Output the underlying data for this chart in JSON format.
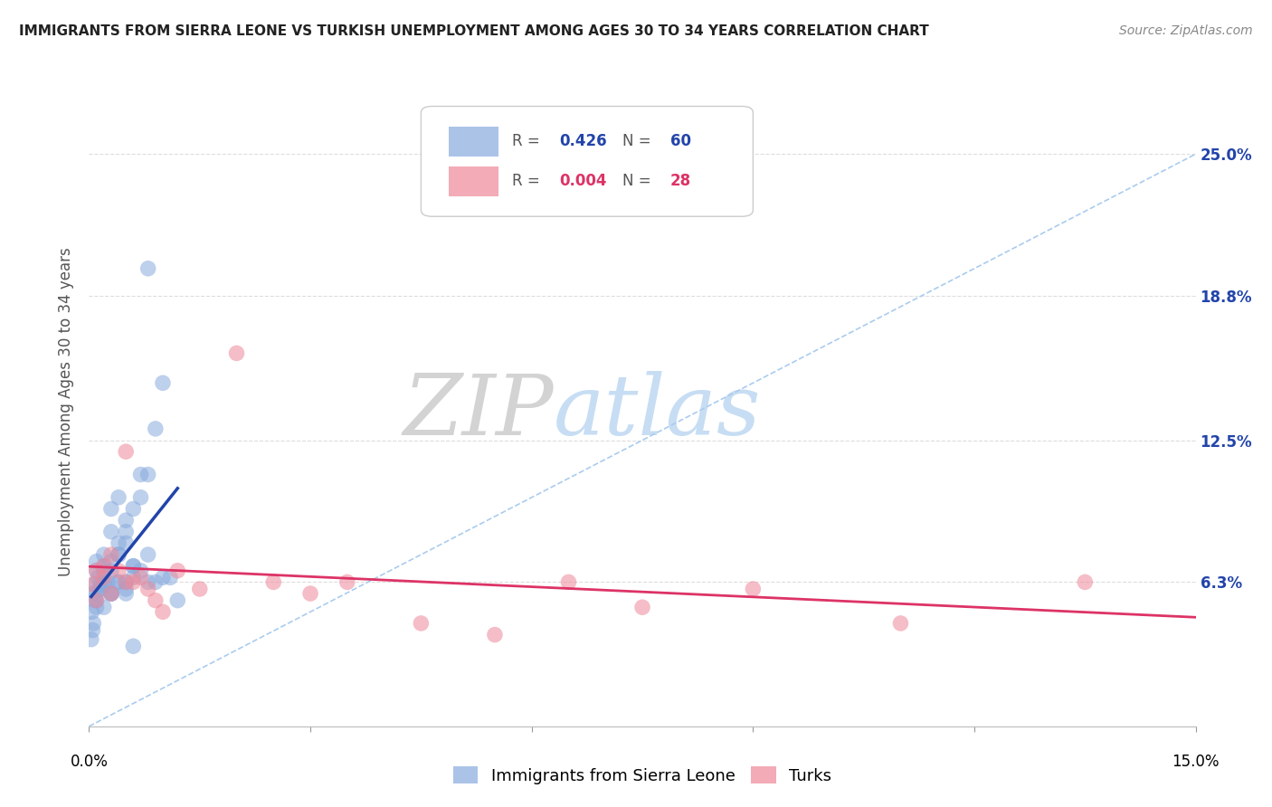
{
  "title": "IMMIGRANTS FROM SIERRA LEONE VS TURKISH UNEMPLOYMENT AMONG AGES 30 TO 34 YEARS CORRELATION CHART",
  "source": "Source: ZipAtlas.com",
  "ylabel": "Unemployment Among Ages 30 to 34 years",
  "xlim": [
    0,
    0.15
  ],
  "ylim": [
    0.0,
    0.275
  ],
  "yticks": [
    0.063,
    0.125,
    0.188,
    0.25
  ],
  "ytick_labels": [
    "6.3%",
    "12.5%",
    "18.8%",
    "25.0%"
  ],
  "legend_label1": "Immigrants from Sierra Leone",
  "legend_label2": "Turks",
  "color_blue": "#88AADD",
  "color_pink": "#EE8899",
  "color_blue_line": "#2244AA",
  "color_pink_line": "#DD3366",
  "color_dashed": "#AACCEE",
  "watermark_zip": "ZIP",
  "watermark_atlas": "atlas",
  "blue_x": [
    0.0005,
    0.0008,
    0.001,
    0.001,
    0.0012,
    0.0015,
    0.002,
    0.002,
    0.002,
    0.0025,
    0.003,
    0.003,
    0.003,
    0.003,
    0.004,
    0.004,
    0.004,
    0.005,
    0.005,
    0.005,
    0.006,
    0.006,
    0.006,
    0.007,
    0.007,
    0.008,
    0.008,
    0.009,
    0.01,
    0.011,
    0.0004,
    0.0006,
    0.0008,
    0.001,
    0.001,
    0.0015,
    0.002,
    0.002,
    0.003,
    0.003,
    0.004,
    0.004,
    0.005,
    0.005,
    0.006,
    0.007,
    0.008,
    0.009,
    0.01,
    0.012,
    0.0003,
    0.0005,
    0.001,
    0.0015,
    0.002,
    0.003,
    0.004,
    0.005,
    0.006,
    0.008
  ],
  "blue_y": [
    0.058,
    0.062,
    0.068,
    0.072,
    0.065,
    0.06,
    0.07,
    0.075,
    0.063,
    0.063,
    0.072,
    0.058,
    0.068,
    0.095,
    0.1,
    0.08,
    0.075,
    0.085,
    0.09,
    0.06,
    0.095,
    0.07,
    0.065,
    0.1,
    0.11,
    0.075,
    0.063,
    0.13,
    0.15,
    0.065,
    0.05,
    0.045,
    0.055,
    0.058,
    0.052,
    0.06,
    0.068,
    0.062,
    0.058,
    0.085,
    0.063,
    0.075,
    0.08,
    0.063,
    0.07,
    0.068,
    0.11,
    0.063,
    0.065,
    0.055,
    0.038,
    0.042,
    0.055,
    0.062,
    0.052,
    0.058,
    0.063,
    0.058,
    0.035,
    0.2
  ],
  "pink_x": [
    0.0005,
    0.001,
    0.001,
    0.002,
    0.002,
    0.003,
    0.003,
    0.004,
    0.005,
    0.005,
    0.006,
    0.007,
    0.008,
    0.009,
    0.01,
    0.012,
    0.015,
    0.02,
    0.025,
    0.03,
    0.035,
    0.045,
    0.055,
    0.065,
    0.075,
    0.09,
    0.11,
    0.135
  ],
  "pink_y": [
    0.062,
    0.068,
    0.055,
    0.07,
    0.065,
    0.058,
    0.075,
    0.068,
    0.12,
    0.063,
    0.063,
    0.065,
    0.06,
    0.055,
    0.05,
    0.068,
    0.06,
    0.163,
    0.063,
    0.058,
    0.063,
    0.045,
    0.04,
    0.063,
    0.052,
    0.06,
    0.045,
    0.063
  ]
}
